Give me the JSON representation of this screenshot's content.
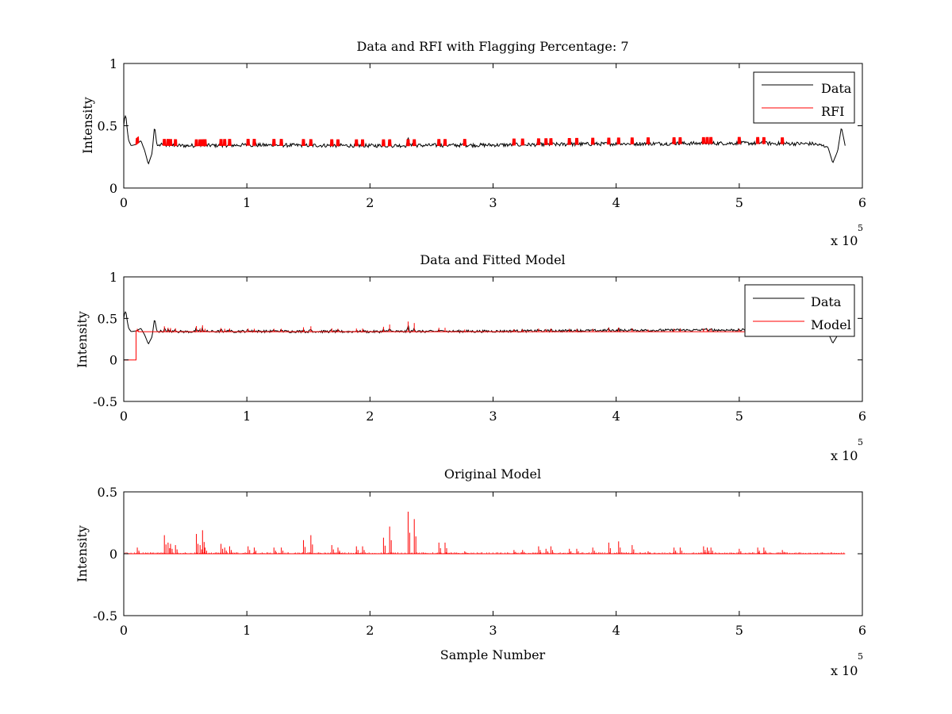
{
  "chart_data": [
    {
      "type": "line",
      "title": "Data and RFI with Flagging Percentage: 7",
      "xlabel": "",
      "ylabel": "Intensity",
      "xlim": [
        0,
        6
      ],
      "ylim": [
        0,
        1
      ],
      "xticks": [
        "0",
        "1",
        "2",
        "3",
        "4",
        "5",
        "6"
      ],
      "yticks": [
        "0",
        "0.5",
        "1"
      ],
      "xexp_base": "x 10",
      "xexp_power": "5",
      "legend_position": "top-right",
      "grid": false,
      "series": [
        {
          "name": "Data",
          "color": "#000000",
          "baseline": 0.345,
          "x": [
            0,
            0.005,
            0.012,
            0.02,
            0.03,
            0.04,
            0.06,
            0.1,
            0.14,
            0.17,
            0.2,
            0.23,
            0.25,
            0.27,
            0.3,
            0.5,
            1.0,
            2.0,
            3.0,
            4.0,
            5.0,
            5.6,
            5.72,
            5.76,
            5.8,
            5.83,
            5.86
          ],
          "y": [
            0.5,
            0.55,
            0.58,
            0.56,
            0.45,
            0.38,
            0.34,
            0.35,
            0.38,
            0.3,
            0.19,
            0.28,
            0.5,
            0.34,
            0.345,
            0.34,
            0.345,
            0.34,
            0.345,
            0.355,
            0.36,
            0.355,
            0.33,
            0.2,
            0.3,
            0.49,
            0.34
          ]
        },
        {
          "name": "RFI",
          "color": "#ff0000"
        }
      ]
    },
    {
      "type": "line",
      "title": "Data and Fitted Model",
      "xlabel": "",
      "ylabel": "Intensity",
      "xlim": [
        0,
        6
      ],
      "ylim": [
        -0.5,
        1
      ],
      "xticks": [
        "0",
        "1",
        "2",
        "3",
        "4",
        "5",
        "6"
      ],
      "yticks": [
        "-0.5",
        "0",
        "0.5",
        "1"
      ],
      "xexp_base": "x 10",
      "xexp_power": "5",
      "legend_position": "top-right",
      "grid": false,
      "series": [
        {
          "name": "Data",
          "color": "#000000",
          "baseline": 0.345,
          "x": [
            0,
            0.005,
            0.012,
            0.02,
            0.03,
            0.04,
            0.06,
            0.1,
            0.14,
            0.17,
            0.2,
            0.23,
            0.25,
            0.27,
            0.3,
            0.5,
            1.0,
            2.0,
            3.0,
            4.0,
            5.0,
            5.6,
            5.72,
            5.76,
            5.8,
            5.83,
            5.86
          ],
          "y": [
            0.5,
            0.55,
            0.58,
            0.56,
            0.45,
            0.38,
            0.34,
            0.35,
            0.38,
            0.3,
            0.19,
            0.28,
            0.5,
            0.34,
            0.345,
            0.34,
            0.345,
            0.34,
            0.345,
            0.355,
            0.36,
            0.355,
            0.33,
            0.2,
            0.3,
            0.49,
            0.34
          ]
        },
        {
          "name": "Model",
          "color": "#ff0000",
          "x": [
            0,
            0.1,
            0.1,
            0.12,
            0.12,
            5.86
          ],
          "y": [
            0,
            0,
            0.35,
            0.35,
            0.34,
            0.34
          ]
        }
      ]
    },
    {
      "type": "line",
      "title": "Original Model",
      "xlabel": "Sample Number",
      "ylabel": "Intensity",
      "xlim": [
        0,
        6
      ],
      "ylim": [
        -0.5,
        0.5
      ],
      "xticks": [
        "0",
        "1",
        "2",
        "3",
        "4",
        "5",
        "6"
      ],
      "yticks": [
        "-0.5",
        "0",
        "0.5"
      ],
      "xexp_base": "x 10",
      "xexp_power": "5",
      "grid": false,
      "series": [
        {
          "name": "",
          "color": "#ff0000",
          "baseline": 0.0
        }
      ]
    }
  ],
  "rfi_spikes": [
    {
      "x": 0.11,
      "h": 0.05
    },
    {
      "x": 0.33,
      "h": 0.15
    },
    {
      "x": 0.36,
      "h": 0.09
    },
    {
      "x": 0.38,
      "h": 0.08
    },
    {
      "x": 0.42,
      "h": 0.07
    },
    {
      "x": 0.59,
      "h": 0.16
    },
    {
      "x": 0.62,
      "h": 0.07
    },
    {
      "x": 0.64,
      "h": 0.19
    },
    {
      "x": 0.66,
      "h": 0.05
    },
    {
      "x": 0.79,
      "h": 0.08
    },
    {
      "x": 0.82,
      "h": 0.05
    },
    {
      "x": 0.86,
      "h": 0.06
    },
    {
      "x": 1.01,
      "h": 0.06
    },
    {
      "x": 1.06,
      "h": 0.05
    },
    {
      "x": 1.22,
      "h": 0.05
    },
    {
      "x": 1.28,
      "h": 0.05
    },
    {
      "x": 1.46,
      "h": 0.11
    },
    {
      "x": 1.52,
      "h": 0.15
    },
    {
      "x": 1.69,
      "h": 0.07
    },
    {
      "x": 1.74,
      "h": 0.05
    },
    {
      "x": 1.89,
      "h": 0.06
    },
    {
      "x": 1.94,
      "h": 0.06
    },
    {
      "x": 2.11,
      "h": 0.13
    },
    {
      "x": 2.16,
      "h": 0.22
    },
    {
      "x": 2.31,
      "h": 0.34
    },
    {
      "x": 2.36,
      "h": 0.28
    },
    {
      "x": 2.56,
      "h": 0.09
    },
    {
      "x": 2.61,
      "h": 0.09
    },
    {
      "x": 2.77,
      "h": 0.02
    },
    {
      "x": 3.17,
      "h": 0.03
    },
    {
      "x": 3.24,
      "h": 0.03
    },
    {
      "x": 3.37,
      "h": 0.06
    },
    {
      "x": 3.43,
      "h": 0.04
    },
    {
      "x": 3.47,
      "h": 0.06
    },
    {
      "x": 3.62,
      "h": 0.04
    },
    {
      "x": 3.68,
      "h": 0.04
    },
    {
      "x": 3.81,
      "h": 0.05
    },
    {
      "x": 3.94,
      "h": 0.09
    },
    {
      "x": 4.02,
      "h": 0.1
    },
    {
      "x": 4.13,
      "h": 0.07
    },
    {
      "x": 4.26,
      "h": 0.02
    },
    {
      "x": 4.47,
      "h": 0.05
    },
    {
      "x": 4.52,
      "h": 0.05
    },
    {
      "x": 4.71,
      "h": 0.06
    },
    {
      "x": 4.74,
      "h": 0.05
    },
    {
      "x": 4.77,
      "h": 0.05
    },
    {
      "x": 5.0,
      "h": 0.04
    },
    {
      "x": 5.15,
      "h": 0.05
    },
    {
      "x": 5.2,
      "h": 0.05
    },
    {
      "x": 5.35,
      "h": 0.03
    }
  ]
}
